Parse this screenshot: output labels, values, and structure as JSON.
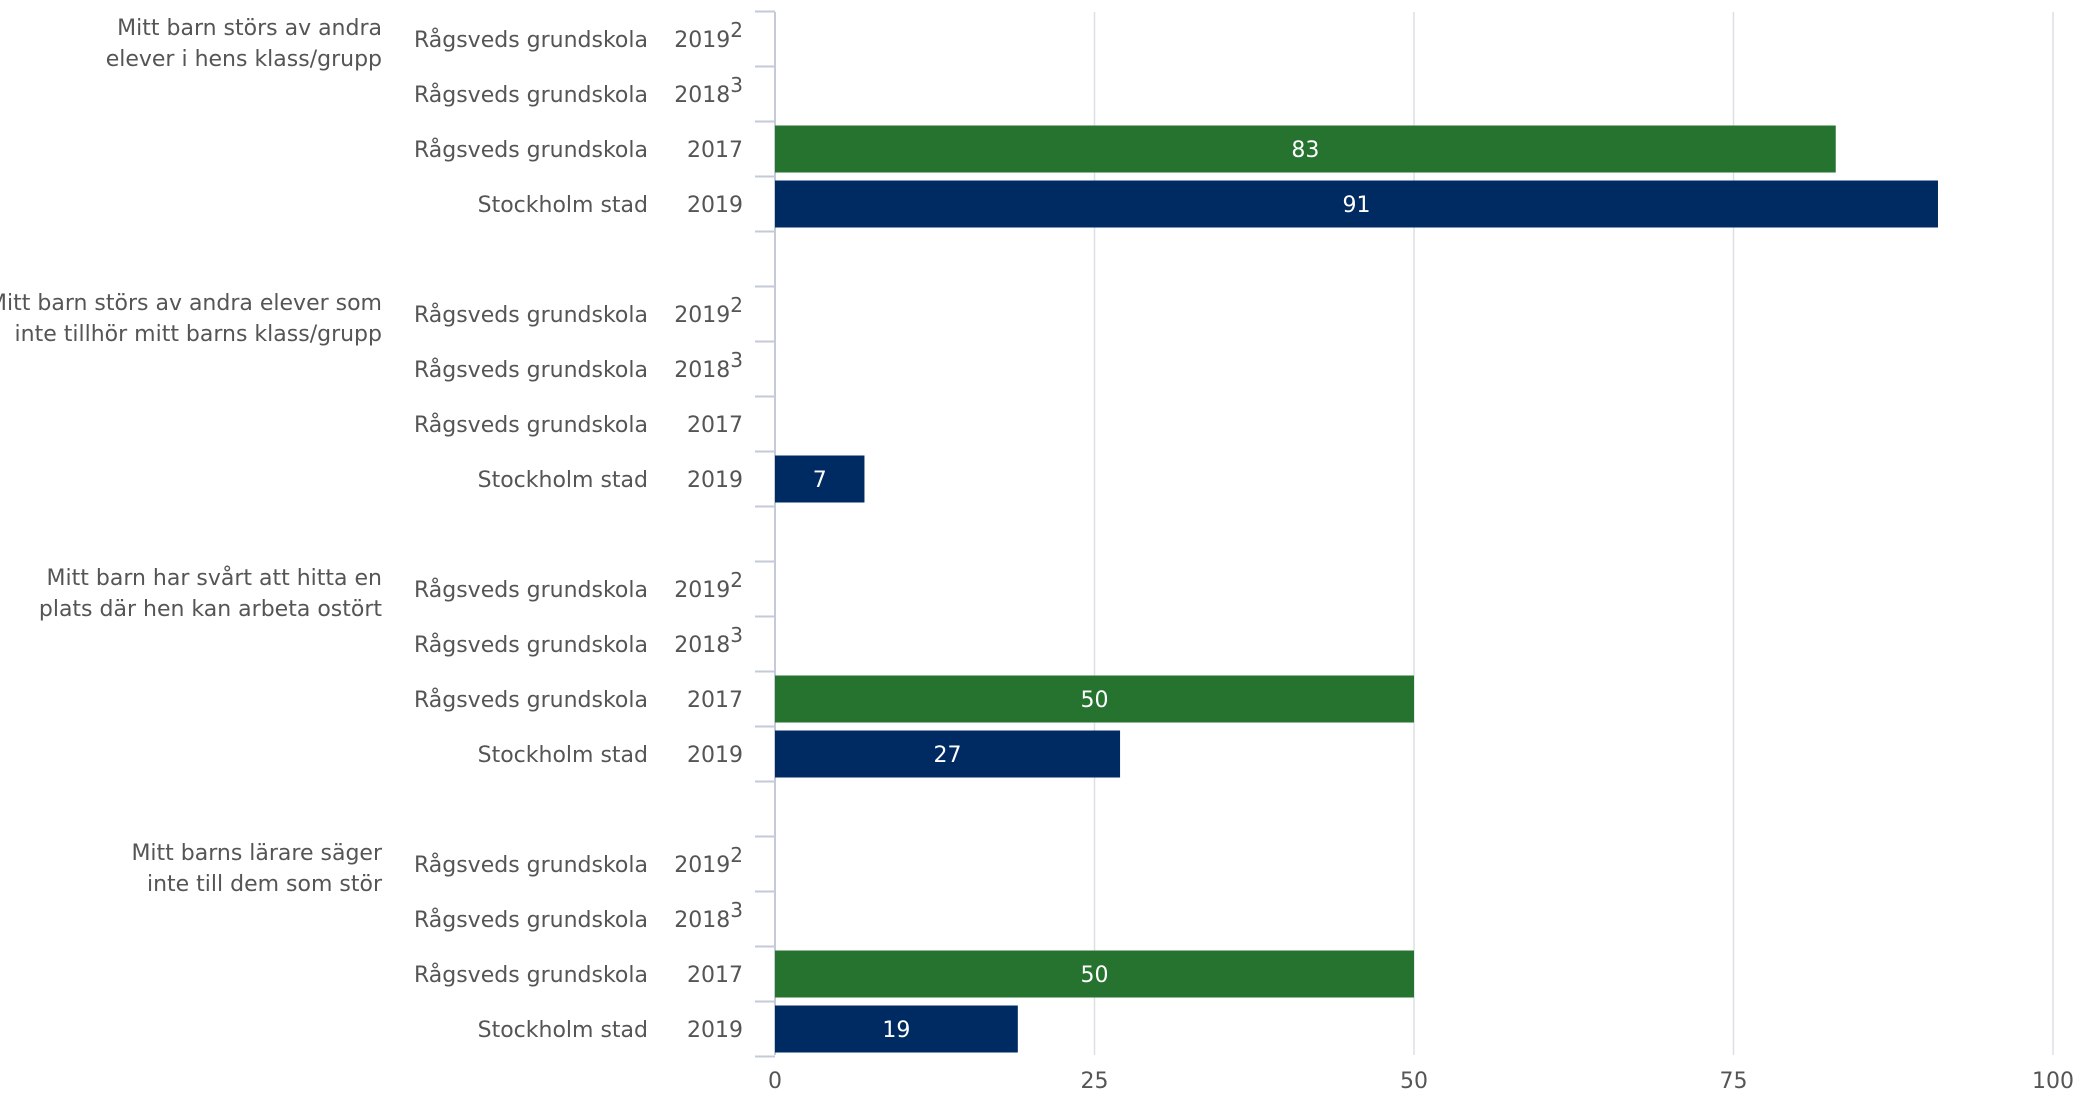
{
  "chart_data": {
    "type": "bar",
    "orientation": "horizontal",
    "xlim": [
      0,
      100
    ],
    "x_ticks": [
      0,
      25,
      50,
      75,
      100
    ],
    "grid": true,
    "legend": "none",
    "colors": {
      "Rågsveds grundskola": "#26732F",
      "Stockholm stad": "#002B62"
    },
    "groups": [
      {
        "label": "Mitt barn störs av andra elever i hens klass/grupp",
        "label_lines": [
          "Mitt barn störs av andra",
          "elever i hens klass/grupp"
        ],
        "rows": [
          {
            "unit": "Rågsveds grundskola",
            "year": "2019",
            "sup": "2",
            "value": null
          },
          {
            "unit": "Rågsveds grundskola",
            "year": "2018",
            "sup": "3",
            "value": null
          },
          {
            "unit": "Rågsveds grundskola",
            "year": "2017",
            "sup": "",
            "value": 83
          },
          {
            "unit": "Stockholm stad",
            "year": "2019",
            "sup": "",
            "value": 91
          }
        ]
      },
      {
        "label": "Mitt barn störs av andra elever som inte tillhör mitt barns klass/grupp",
        "label_lines": [
          "Mitt barn störs av andra elever som",
          "inte tillhör mitt barns klass/grupp"
        ],
        "rows": [
          {
            "unit": "Rågsveds grundskola",
            "year": "2019",
            "sup": "2",
            "value": null
          },
          {
            "unit": "Rågsveds grundskola",
            "year": "2018",
            "sup": "3",
            "value": null
          },
          {
            "unit": "Rågsveds grundskola",
            "year": "2017",
            "sup": "",
            "value": null
          },
          {
            "unit": "Stockholm stad",
            "year": "2019",
            "sup": "",
            "value": 7
          }
        ]
      },
      {
        "label": "Mitt barn har svårt att hitta en plats där hen kan arbeta ostört",
        "label_lines": [
          "Mitt barn har svårt att hitta en",
          "plats där hen kan arbeta ostört"
        ],
        "rows": [
          {
            "unit": "Rågsveds grundskola",
            "year": "2019",
            "sup": "2",
            "value": null
          },
          {
            "unit": "Rågsveds grundskola",
            "year": "2018",
            "sup": "3",
            "value": null
          },
          {
            "unit": "Rågsveds grundskola",
            "year": "2017",
            "sup": "",
            "value": 50
          },
          {
            "unit": "Stockholm stad",
            "year": "2019",
            "sup": "",
            "value": 27
          }
        ]
      },
      {
        "label": "Mitt barns lärare säger inte till dem som stör",
        "label_lines": [
          "Mitt barns lärare säger",
          "inte till dem som stör"
        ],
        "rows": [
          {
            "unit": "Rågsveds grundskola",
            "year": "2019",
            "sup": "2",
            "value": null
          },
          {
            "unit": "Rågsveds grundskola",
            "year": "2018",
            "sup": "3",
            "value": null
          },
          {
            "unit": "Rågsveds grundskola",
            "year": "2017",
            "sup": "",
            "value": 50
          },
          {
            "unit": "Stockholm stad",
            "year": "2019",
            "sup": "",
            "value": 19
          }
        ]
      }
    ]
  }
}
